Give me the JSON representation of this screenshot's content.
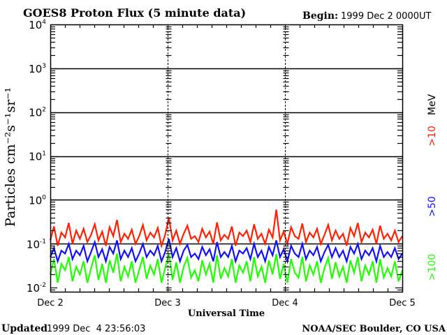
{
  "header": {
    "title": "GOES8 Proton Flux (5 minute data)",
    "begin_label": "Begin:",
    "begin_value": "1999 Dec 2 0000UT"
  },
  "footer": {
    "updated_label": "Updated",
    "updated_value": "1999 Dec  4 23:56:03",
    "credit": "NOAA/SEC Boulder, CO USA"
  },
  "chart_data": {
    "type": "line",
    "title": "GOES8 Proton Flux (5 minute data)",
    "xlabel": "Universal Time",
    "ylabel": "Particles cm⁻²s⁻¹sr⁻¹",
    "y_scale": "log",
    "ylim": [
      0.0081,
      10000
    ],
    "y_ticks": [
      {
        "base": "10",
        "exp": "4",
        "value": 10000
      },
      {
        "base": "10",
        "exp": "3",
        "value": 1000
      },
      {
        "base": "10",
        "exp": "2",
        "value": 100
      },
      {
        "base": "10",
        "exp": "1",
        "value": 10
      },
      {
        "base": "10",
        "exp": "0",
        "value": 1
      },
      {
        "base": "10",
        "exp": "-1",
        "value": 0.1
      },
      {
        "base": "10",
        "exp": "-2",
        "value": 0.01
      }
    ],
    "x_ticks": [
      "Dec 2",
      "Dec 3",
      "Dec 4",
      "Dec 5"
    ],
    "x_range_days": [
      0,
      3
    ],
    "grid": "horizontal lines at decades 10^-1 to 10^3, dashed vertical day separators",
    "unit_label": "MeV",
    "legend_placement": "right",
    "series": [
      {
        "name": ">10",
        "color": "#ff2000",
        "values": [
          0.12,
          0.25,
          0.09,
          0.18,
          0.14,
          0.3,
          0.1,
          0.2,
          0.13,
          0.22,
          0.11,
          0.16,
          0.28,
          0.12,
          0.19,
          0.09,
          0.24,
          0.15,
          0.35,
          0.11,
          0.17,
          0.13,
          0.21,
          0.1,
          0.15,
          0.27,
          0.12,
          0.18,
          0.14,
          0.23,
          0.09,
          0.16,
          0.4,
          0.12,
          0.2,
          0.1,
          0.17,
          0.26,
          0.13,
          0.15,
          0.11,
          0.22,
          0.14,
          0.19,
          0.1,
          0.31,
          0.12,
          0.16,
          0.13,
          0.25,
          0.09,
          0.18,
          0.15,
          0.2,
          0.11,
          0.28,
          0.13,
          0.17,
          0.1,
          0.21,
          0.14,
          0.6,
          0.12,
          0.19,
          0.1,
          0.24,
          0.15,
          0.13,
          0.29,
          0.11,
          0.18,
          0.14,
          0.22,
          0.1,
          0.16,
          0.27,
          0.12,
          0.2,
          0.13,
          0.17,
          0.09,
          0.23,
          0.15,
          0.3,
          0.11,
          0.18,
          0.14,
          0.21,
          0.1,
          0.26,
          0.13,
          0.17,
          0.12,
          0.2,
          0.11,
          0.15
        ]
      },
      {
        "name": ">50",
        "color": "#1010ff",
        "values": [
          0.05,
          0.08,
          0.04,
          0.07,
          0.06,
          0.1,
          0.045,
          0.07,
          0.055,
          0.09,
          0.04,
          0.065,
          0.11,
          0.05,
          0.075,
          0.04,
          0.085,
          0.06,
          0.12,
          0.045,
          0.07,
          0.05,
          0.08,
          0.04,
          0.06,
          0.1,
          0.05,
          0.07,
          0.055,
          0.09,
          0.04,
          0.065,
          0.13,
          0.05,
          0.08,
          0.04,
          0.07,
          0.095,
          0.05,
          0.06,
          0.045,
          0.085,
          0.055,
          0.075,
          0.04,
          0.11,
          0.05,
          0.065,
          0.05,
          0.09,
          0.04,
          0.07,
          0.06,
          0.08,
          0.045,
          0.1,
          0.05,
          0.07,
          0.04,
          0.085,
          0.055,
          0.12,
          0.05,
          0.075,
          0.04,
          0.09,
          0.06,
          0.05,
          0.1,
          0.045,
          0.07,
          0.055,
          0.085,
          0.04,
          0.065,
          0.095,
          0.05,
          0.08,
          0.05,
          0.07,
          0.04,
          0.085,
          0.06,
          0.1,
          0.045,
          0.07,
          0.055,
          0.08,
          0.04,
          0.09,
          0.05,
          0.065,
          0.05,
          0.08,
          0.045,
          0.06
        ]
      },
      {
        "name": ">100",
        "color": "#20ff00",
        "values": [
          0.02,
          0.045,
          0.013,
          0.035,
          0.025,
          0.05,
          0.014,
          0.03,
          0.02,
          0.04,
          0.013,
          0.028,
          0.055,
          0.015,
          0.035,
          0.013,
          0.042,
          0.022,
          0.06,
          0.014,
          0.03,
          0.018,
          0.04,
          0.013,
          0.025,
          0.05,
          0.016,
          0.032,
          0.02,
          0.045,
          0.013,
          0.028,
          0.06,
          0.015,
          0.038,
          0.013,
          0.03,
          0.048,
          0.017,
          0.025,
          0.014,
          0.042,
          0.02,
          0.035,
          0.013,
          0.055,
          0.016,
          0.028,
          0.018,
          0.045,
          0.013,
          0.032,
          0.022,
          0.04,
          0.014,
          0.05,
          0.018,
          0.03,
          0.013,
          0.042,
          0.02,
          0.058,
          0.016,
          0.035,
          0.013,
          0.045,
          0.022,
          0.017,
          0.05,
          0.014,
          0.032,
          0.02,
          0.04,
          0.013,
          0.028,
          0.048,
          0.016,
          0.038,
          0.018,
          0.03,
          0.013,
          0.042,
          0.022,
          0.05,
          0.014,
          0.032,
          0.02,
          0.04,
          0.013,
          0.045,
          0.017,
          0.028,
          0.018,
          0.04,
          0.014,
          0.025
        ]
      }
    ]
  }
}
